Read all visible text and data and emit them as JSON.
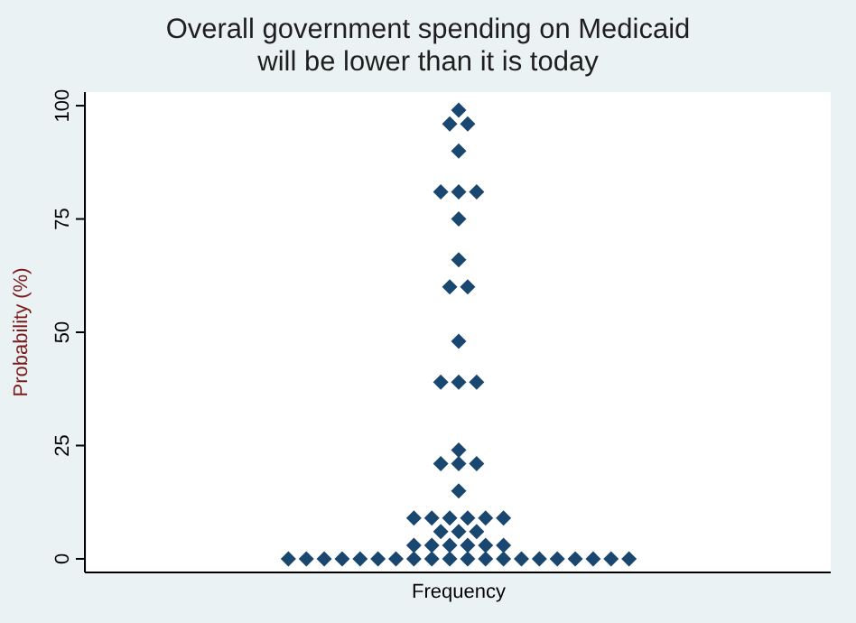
{
  "chart_data": {
    "type": "scatter",
    "title": "Overall government spending on Medicaid\nwill be lower than it is today",
    "xlabel": "Frequency",
    "ylabel": "Probability (%)",
    "categories": [
      null,
      null,
      null,
      null,
      null,
      null,
      null,
      null,
      null,
      null,
      null,
      null,
      null,
      null,
      null,
      null,
      null,
      null,
      null,
      null,
      null,
      null,
      null,
      null,
      null,
      null,
      null,
      null,
      null,
      null,
      null,
      null,
      null,
      null,
      null,
      null,
      null,
      null,
      null,
      null,
      null,
      null,
      null,
      null,
      null,
      null,
      null,
      null,
      null,
      null,
      null,
      null,
      null,
      null,
      null,
      null,
      null,
      null,
      null,
      null,
      null,
      null,
      null,
      null,
      null,
      null,
      null,
      null,
      null,
      null,
      null,
      null,
      null,
      null,
      null,
      null,
      null,
      null,
      null,
      null,
      null,
      null,
      null
    ],
    "ylim": [
      -3,
      103
    ],
    "yticks": [
      0,
      25,
      50,
      75,
      100
    ],
    "tick_labels": "y",
    "grid": false,
    "marker": "diamond",
    "series": [
      {
        "color": "#1a476f",
        "values": [
          null,
          null,
          null,
          null,
          null,
          null,
          null,
          null,
          null,
          null,
          null,
          null,
          null,
          null,
          null,
          null,
          null,
          null,
          null,
          null,
          null,
          null,
          0,
          null,
          0,
          null,
          0,
          null,
          0,
          null,
          0,
          null,
          0,
          null,
          0,
          null,
          9,
          null,
          9,
          81,
          96,
          99,
          96,
          81,
          9,
          null,
          9,
          null,
          0,
          null,
          0,
          null,
          0,
          null,
          0,
          null,
          0,
          null,
          0,
          null,
          0,
          null,
          null,
          null,
          null,
          null,
          null,
          null,
          null,
          null,
          null,
          null,
          null,
          null,
          null,
          null,
          null,
          null,
          null,
          null,
          null,
          null,
          null
        ]
      },
      {
        "color": "#1a476f",
        "values": [
          null,
          null,
          null,
          null,
          null,
          null,
          null,
          null,
          null,
          null,
          null,
          null,
          null,
          null,
          null,
          null,
          null,
          null,
          null,
          null,
          null,
          null,
          null,
          null,
          null,
          null,
          null,
          null,
          null,
          null,
          null,
          null,
          null,
          null,
          null,
          null,
          3,
          null,
          3,
          39,
          60,
          90,
          60,
          39,
          3,
          null,
          3,
          null,
          null,
          null,
          null,
          null,
          null,
          null,
          null,
          null,
          null,
          null,
          null,
          null,
          null,
          null,
          null,
          null,
          null,
          null,
          null,
          null,
          null,
          null,
          null,
          null,
          null,
          null,
          null,
          null,
          null,
          null,
          null,
          null,
          null,
          null,
          null
        ]
      },
      {
        "color": "#1a476f",
        "values": [
          null,
          null,
          null,
          null,
          null,
          null,
          null,
          null,
          null,
          null,
          null,
          null,
          null,
          null,
          null,
          null,
          null,
          null,
          null,
          null,
          null,
          null,
          null,
          null,
          null,
          null,
          null,
          null,
          null,
          null,
          null,
          null,
          null,
          null,
          null,
          null,
          0,
          null,
          0,
          21,
          9,
          81,
          9,
          21,
          0,
          null,
          0,
          null,
          null,
          null,
          null,
          null,
          null,
          null,
          null,
          null,
          null,
          null,
          null,
          null,
          null,
          null,
          null,
          null,
          null,
          null,
          null,
          null,
          null,
          null,
          null,
          null,
          null,
          null,
          null,
          null,
          null,
          null,
          null,
          null,
          null,
          null,
          null
        ]
      },
      {
        "color": "#1a476f",
        "values": [
          null,
          null,
          null,
          null,
          null,
          null,
          null,
          null,
          null,
          null,
          null,
          null,
          null,
          null,
          null,
          null,
          null,
          null,
          null,
          null,
          null,
          null,
          null,
          null,
          null,
          null,
          null,
          null,
          null,
          null,
          null,
          null,
          null,
          null,
          null,
          null,
          null,
          null,
          null,
          6,
          3,
          75,
          3,
          6,
          null,
          null,
          null,
          null,
          null,
          null,
          null,
          null,
          null,
          null,
          null,
          null,
          null,
          null,
          null,
          null,
          null,
          null,
          null,
          null,
          null,
          null,
          null,
          null,
          null,
          null,
          null,
          null,
          null,
          null,
          null,
          null,
          null,
          null,
          null,
          null,
          null,
          null,
          null
        ]
      },
      {
        "color": "#1a476f",
        "values": [
          null,
          null,
          null,
          null,
          null,
          null,
          null,
          null,
          null,
          null,
          null,
          null,
          null,
          null,
          null,
          null,
          null,
          null,
          null,
          null,
          null,
          null,
          null,
          null,
          null,
          null,
          null,
          null,
          null,
          null,
          null,
          null,
          null,
          null,
          null,
          null,
          null,
          null,
          null,
          null,
          0,
          66,
          0,
          null,
          null,
          null,
          null,
          null,
          null,
          null,
          null,
          null,
          null,
          null,
          null,
          null,
          null,
          null,
          null,
          null,
          null,
          null,
          null,
          null,
          null,
          null,
          null,
          null,
          null,
          null,
          null,
          null,
          null,
          null,
          null,
          null,
          null,
          null,
          null,
          null,
          null,
          null,
          null
        ]
      },
      {
        "color": "#1a476f",
        "values": [
          null,
          null,
          null,
          null,
          null,
          null,
          null,
          null,
          null,
          null,
          null,
          null,
          null,
          null,
          null,
          null,
          null,
          null,
          null,
          null,
          null,
          null,
          null,
          null,
          null,
          null,
          null,
          null,
          null,
          null,
          null,
          null,
          null,
          null,
          null,
          null,
          null,
          null,
          null,
          null,
          null,
          48,
          null,
          null,
          null,
          null,
          null,
          null,
          null,
          null,
          null,
          null,
          null,
          null,
          null,
          null,
          null,
          null,
          null,
          null,
          null,
          null,
          null,
          null,
          null,
          null,
          null,
          null,
          null,
          null,
          null,
          null,
          null,
          null,
          null,
          null,
          null,
          null,
          null,
          null,
          null,
          null,
          null
        ]
      },
      {
        "color": "#1a476f",
        "values": [
          null,
          null,
          null,
          null,
          null,
          null,
          null,
          null,
          null,
          null,
          null,
          null,
          null,
          null,
          null,
          null,
          null,
          null,
          null,
          null,
          null,
          null,
          null,
          null,
          null,
          null,
          null,
          null,
          null,
          null,
          null,
          null,
          null,
          null,
          null,
          null,
          null,
          null,
          null,
          null,
          null,
          39,
          null,
          null,
          null,
          null,
          null,
          null,
          null,
          null,
          null,
          null,
          null,
          null,
          null,
          null,
          null,
          null,
          null,
          null,
          null,
          null,
          null,
          null,
          null,
          null,
          null,
          null,
          null,
          null,
          null,
          null,
          null,
          null,
          null,
          null,
          null,
          null,
          null,
          null,
          null,
          null,
          null
        ]
      },
      {
        "color": "#1a476f",
        "values": [
          null,
          null,
          null,
          null,
          null,
          null,
          null,
          null,
          null,
          null,
          null,
          null,
          null,
          null,
          null,
          null,
          null,
          null,
          null,
          null,
          null,
          null,
          null,
          null,
          null,
          null,
          null,
          null,
          null,
          null,
          null,
          null,
          null,
          null,
          null,
          null,
          null,
          null,
          null,
          null,
          null,
          24,
          null,
          null,
          null,
          null,
          null,
          null,
          null,
          null,
          null,
          null,
          null,
          null,
          null,
          null,
          null,
          null,
          null,
          null,
          null,
          null,
          null,
          null,
          null,
          null,
          null,
          null,
          null,
          null,
          null,
          null,
          null,
          null,
          null,
          null,
          null,
          null,
          null,
          null,
          null,
          null,
          null
        ]
      },
      {
        "color": "#1a476f",
        "values": [
          null,
          null,
          null,
          null,
          null,
          null,
          null,
          null,
          null,
          null,
          null,
          null,
          null,
          null,
          null,
          null,
          null,
          null,
          null,
          null,
          null,
          null,
          null,
          null,
          null,
          null,
          null,
          null,
          null,
          null,
          null,
          null,
          null,
          null,
          null,
          null,
          null,
          null,
          null,
          null,
          null,
          21,
          null,
          null,
          null,
          null,
          null,
          null,
          null,
          null,
          null,
          null,
          null,
          null,
          null,
          null,
          null,
          null,
          null,
          null,
          null,
          null,
          null,
          null,
          null,
          null,
          null,
          null,
          null,
          null,
          null,
          null,
          null,
          null,
          null,
          null,
          null,
          null,
          null,
          null,
          null,
          null,
          null
        ]
      },
      {
        "color": "#1a476f",
        "values": [
          null,
          null,
          null,
          null,
          null,
          null,
          null,
          null,
          null,
          null,
          null,
          null,
          null,
          null,
          null,
          null,
          null,
          null,
          null,
          null,
          null,
          null,
          null,
          null,
          null,
          null,
          null,
          null,
          null,
          null,
          null,
          null,
          null,
          null,
          null,
          null,
          null,
          null,
          null,
          null,
          null,
          15,
          null,
          null,
          null,
          null,
          null,
          null,
          null,
          null,
          null,
          null,
          null,
          null,
          null,
          null,
          null,
          null,
          null,
          null,
          null,
          null,
          null,
          null,
          null,
          null,
          null,
          null,
          null,
          null,
          null,
          null,
          null,
          null,
          null,
          null,
          null,
          null,
          null,
          null,
          null,
          null,
          null
        ]
      },
      {
        "color": "#1a476f",
        "values": [
          null,
          null,
          null,
          null,
          null,
          null,
          null,
          null,
          null,
          null,
          null,
          null,
          null,
          null,
          null,
          null,
          null,
          null,
          null,
          null,
          null,
          null,
          null,
          null,
          null,
          null,
          null,
          null,
          null,
          null,
          null,
          null,
          null,
          null,
          null,
          null,
          null,
          null,
          null,
          null,
          null,
          6,
          null,
          null,
          null,
          null,
          null,
          null,
          null,
          null,
          null,
          null,
          null,
          null,
          null,
          null,
          null,
          null,
          null,
          null,
          null,
          null,
          null,
          null,
          null,
          null,
          null,
          null,
          null,
          null,
          null,
          null,
          null,
          null,
          null,
          null,
          null,
          null,
          null,
          null,
          null,
          null,
          null
        ]
      }
    ]
  }
}
